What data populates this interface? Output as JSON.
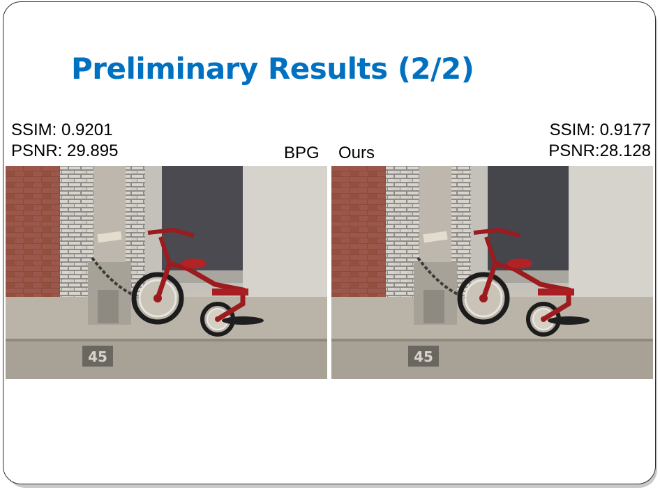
{
  "slide": {
    "title": "Preliminary Results (2/2)"
  },
  "left_panel": {
    "ssim": "SSIM: 0.9201",
    "psnr": "PSNR: 29.895",
    "label": "BPG",
    "house_number": "45"
  },
  "right_panel": {
    "ssim": "SSIM: 0.9177",
    "psnr": "PSNR:28.128",
    "label": "Ours",
    "house_number": "45"
  },
  "colors": {
    "title": "#0070c0",
    "tricycle": "#9b1b1e",
    "brick": "#8a4a3e"
  }
}
